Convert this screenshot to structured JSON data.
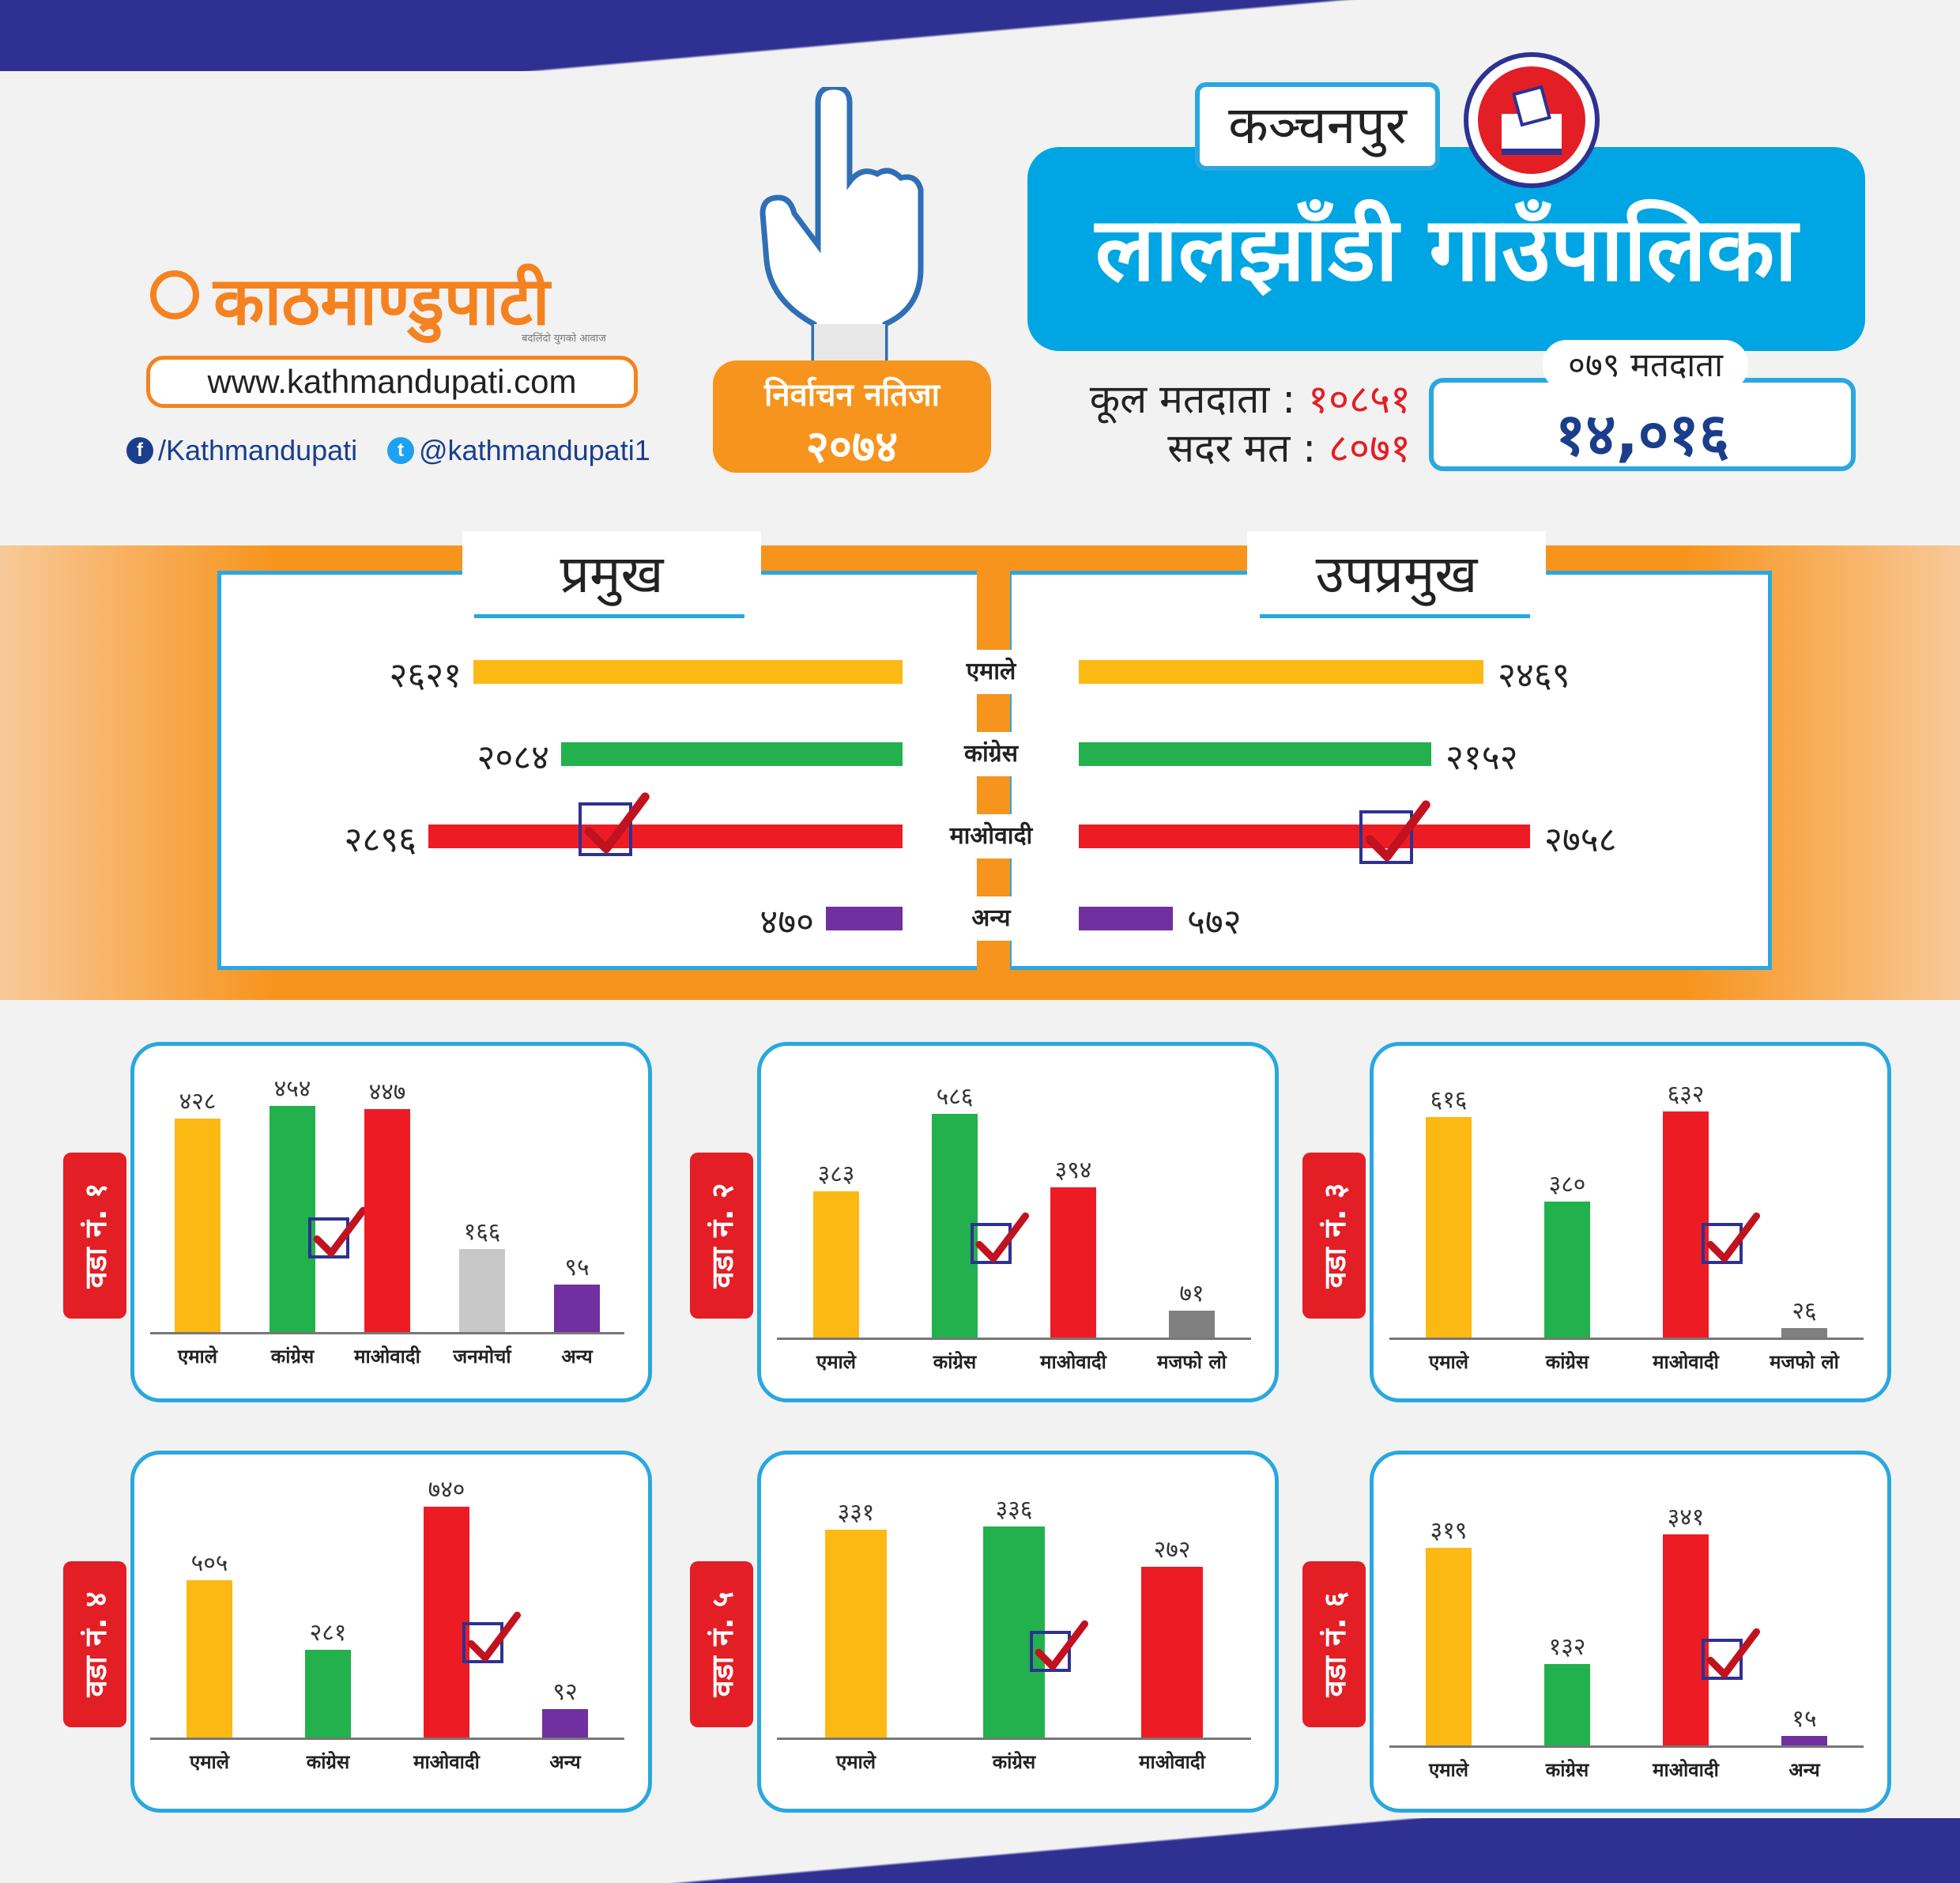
{
  "brand": {
    "logo_text": "काठमाण्डुपाटी",
    "tagline": "बदलिंदो युगको आवाज",
    "url": "www.kathmandupati.com",
    "facebook": "/Kathmandupati",
    "twitter": "@kathmandupati1"
  },
  "badge": {
    "line1": "निर्वाचन नतिजा",
    "line2": "२०७४"
  },
  "header": {
    "district": "कञ्चनपुर",
    "title": "लालझाँडी गाउँपालिका",
    "total_voters_label": "कूल मतदाता :",
    "total_voters": "१०८५१",
    "valid_votes_label": "सदर मत :",
    "valid_votes": "८०७१",
    "voters_079_label": "०७९ मतदाता",
    "voters_079": "१४,०१६"
  },
  "colors": {
    "एमाले": "#fdb913",
    "कांग्रेस": "#22b14c",
    "माओवादी": "#ed1c24",
    "अन्य": "#7030a0",
    "जनमोर्चा": "#c8c8c8",
    "मजफो लो": "#808080",
    "accent_blue": "#29a8e0",
    "accent_orange": "#f7941d",
    "navy": "#2e3192"
  },
  "chart_data": [
    {
      "type": "bar",
      "title": "प्रमुख",
      "categories": [
        "एमाले",
        "कांग्रेस",
        "माओवादी",
        "अन्य"
      ],
      "values": [
        2621,
        2084,
        2896,
        470
      ],
      "labels": [
        "२६२१",
        "२०८४",
        "२८९६",
        "४७०"
      ],
      "winner": "माओवादी"
    },
    {
      "type": "bar",
      "title": "उपप्रमुख",
      "categories": [
        "एमाले",
        "कांग्रेस",
        "माओवादी",
        "अन्य"
      ],
      "values": [
        2469,
        2152,
        2758,
        572
      ],
      "labels": [
        "२४६९",
        "२१५२",
        "२७५८",
        "५७२"
      ],
      "winner": "माओवादी"
    },
    {
      "type": "bar",
      "title": "वडा नं. १",
      "categories": [
        "एमाले",
        "कांग्रेस",
        "माओवादी",
        "जनमोर्चा",
        "अन्य"
      ],
      "values": [
        428,
        454,
        447,
        166,
        95
      ],
      "labels": [
        "४२८",
        "४५४",
        "४४७",
        "१६६",
        "९५"
      ],
      "winner": "कांग्रेस"
    },
    {
      "type": "bar",
      "title": "वडा नं. २",
      "categories": [
        "एमाले",
        "कांग्रेस",
        "माओवादी",
        "मजफो लो"
      ],
      "values": [
        383,
        586,
        394,
        71
      ],
      "labels": [
        "३८३",
        "५८६",
        "३९४",
        "७१"
      ],
      "winner": "कांग्रेस"
    },
    {
      "type": "bar",
      "title": "वडा नं. ३",
      "categories": [
        "एमाले",
        "कांग्रेस",
        "माओवादी",
        "मजफो लो"
      ],
      "values": [
        616,
        380,
        632,
        26
      ],
      "labels": [
        "६१६",
        "३८०",
        "६३२",
        "२६"
      ],
      "winner": "माओवादी"
    },
    {
      "type": "bar",
      "title": "वडा नं. ४",
      "categories": [
        "एमाले",
        "कांग्रेस",
        "माओवादी",
        "अन्य"
      ],
      "values": [
        505,
        281,
        740,
        92
      ],
      "labels": [
        "५०५",
        "२८१",
        "७४०",
        "९२"
      ],
      "winner": "माओवादी"
    },
    {
      "type": "bar",
      "title": "वडा नं. ५",
      "categories": [
        "एमाले",
        "कांग्रेस",
        "माओवादी"
      ],
      "values": [
        331,
        336,
        272
      ],
      "labels": [
        "३३१",
        "३३६",
        "२७२"
      ],
      "winner": "कांग्रेस"
    },
    {
      "type": "bar",
      "title": "वडा नं. ६",
      "categories": [
        "एमाले",
        "कांग्रेस",
        "माओवादी",
        "अन्य"
      ],
      "values": [
        319,
        132,
        341,
        15
      ],
      "labels": [
        "३१९",
        "१३२",
        "३४१",
        "१५"
      ],
      "winner": "माओवादी"
    }
  ]
}
